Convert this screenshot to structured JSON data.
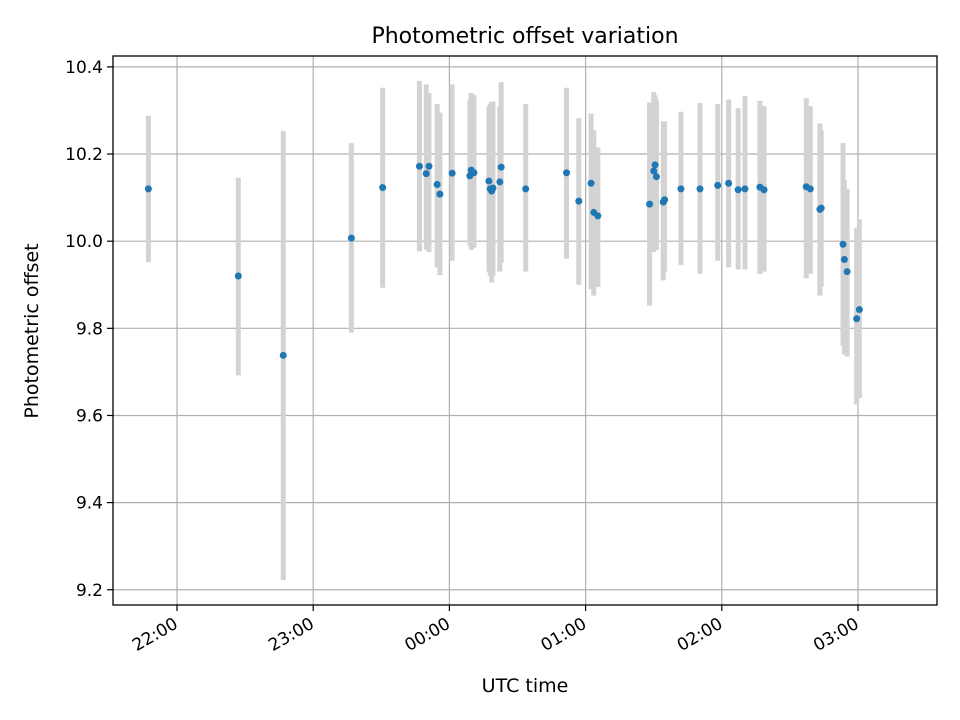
{
  "chart_data": {
    "type": "scatter",
    "title": "Photometric offset variation",
    "xlabel": "UTC time",
    "ylabel": "Photometric offset",
    "xaxis": {
      "unit": "hours (UTC, 24h continuing past midnight)",
      "range": [
        21.53,
        27.58
      ],
      "ticks": [
        22,
        23,
        24,
        25,
        26,
        27
      ],
      "tick_labels": [
        "22:00",
        "23:00",
        "00:00",
        "01:00",
        "02:00",
        "03:00"
      ]
    },
    "yaxis": {
      "range": [
        9.165,
        10.425
      ],
      "ticks": [
        9.2,
        9.4,
        9.6,
        9.8,
        10.0,
        10.2,
        10.4
      ],
      "tick_labels": [
        "9.2",
        "9.4",
        "9.6",
        "9.8",
        "10.0",
        "10.2",
        "10.4"
      ]
    },
    "grid": true,
    "colors": {
      "points": "#1f77b4",
      "errorbars": "#d3d3d3",
      "grid": "#b0b0b0"
    },
    "series": [
      {
        "x": [
          21.79,
          22.45,
          22.78,
          23.28,
          23.51,
          23.78,
          23.83,
          23.85,
          23.91,
          23.93,
          24.02,
          24.15,
          24.16,
          24.18,
          24.29,
          24.3,
          24.31,
          24.32,
          24.37,
          24.38,
          24.56,
          24.86,
          24.95,
          25.04,
          25.06,
          25.09,
          25.47,
          25.5,
          25.51,
          25.52,
          25.57,
          25.58,
          25.7,
          25.84,
          25.97,
          26.05,
          26.12,
          26.17,
          26.28,
          26.31,
          26.62,
          26.65,
          26.72,
          26.73,
          26.89,
          26.9,
          26.92,
          26.99,
          27.01
        ],
        "y": [
          10.12,
          9.92,
          9.738,
          10.007,
          10.123,
          10.172,
          10.155,
          10.172,
          10.13,
          10.108,
          10.156,
          10.15,
          10.163,
          10.157,
          10.138,
          10.12,
          10.115,
          10.122,
          10.136,
          10.17,
          10.12,
          10.157,
          10.092,
          10.133,
          10.066,
          10.058,
          10.085,
          10.161,
          10.175,
          10.148,
          10.09,
          10.095,
          10.12,
          10.12,
          10.128,
          10.133,
          10.118,
          10.12,
          10.124,
          10.118,
          10.125,
          10.12,
          10.073,
          10.076,
          9.993,
          9.958,
          9.93,
          9.822,
          9.843
        ],
        "err_low": [
          9.952,
          9.692,
          9.222,
          9.79,
          9.893,
          9.977,
          9.98,
          9.975,
          9.94,
          9.922,
          9.955,
          9.99,
          9.98,
          9.985,
          9.93,
          9.92,
          9.905,
          9.92,
          9.93,
          9.95,
          9.93,
          9.96,
          9.9,
          9.89,
          9.875,
          9.895,
          9.852,
          9.975,
          9.985,
          9.98,
          9.91,
          9.93,
          9.945,
          9.925,
          9.955,
          9.94,
          9.935,
          9.935,
          9.925,
          9.93,
          9.915,
          9.925,
          9.875,
          9.895,
          9.76,
          9.74,
          9.735,
          9.625,
          9.64
        ],
        "err_high": [
          10.288,
          10.146,
          10.253,
          10.225,
          10.352,
          10.368,
          10.36,
          10.34,
          10.315,
          10.295,
          10.36,
          10.325,
          10.34,
          10.335,
          10.31,
          10.315,
          10.32,
          10.32,
          10.31,
          10.365,
          10.315,
          10.352,
          10.282,
          10.293,
          10.255,
          10.215,
          10.318,
          10.342,
          10.335,
          10.325,
          10.275,
          10.275,
          10.297,
          10.317,
          10.315,
          10.325,
          10.305,
          10.333,
          10.322,
          10.31,
          10.328,
          10.31,
          10.27,
          10.255,
          10.225,
          10.14,
          10.12,
          10.03,
          10.05
        ]
      }
    ]
  }
}
